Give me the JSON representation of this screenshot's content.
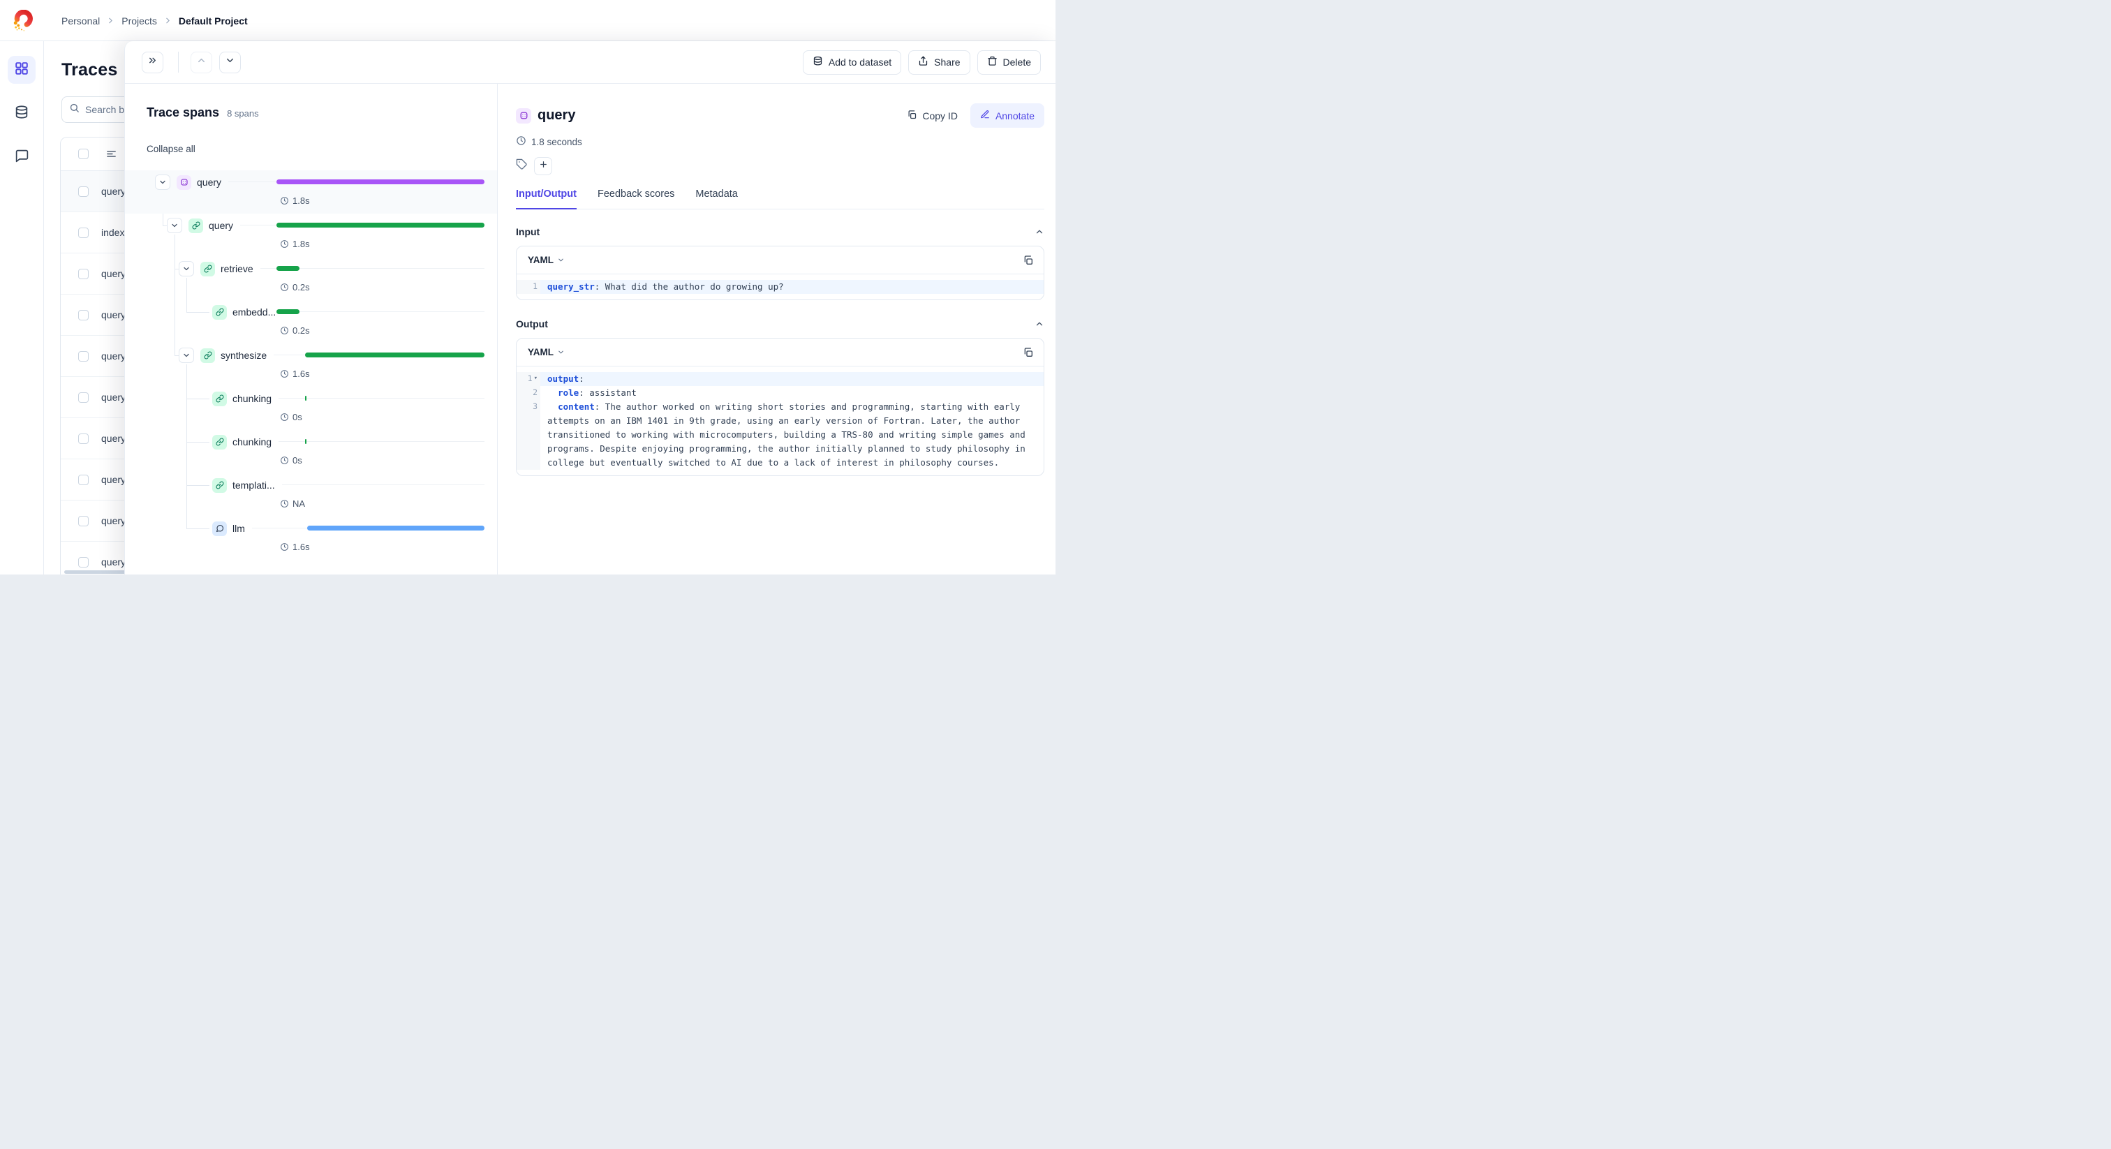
{
  "breadcrumb": {
    "items": [
      "Personal",
      "Projects",
      "Default Project"
    ]
  },
  "sidebar": {
    "items": [
      {
        "id": "projects",
        "icon": "grid-icon",
        "active": true
      },
      {
        "id": "datasets",
        "icon": "database-icon",
        "active": false
      },
      {
        "id": "feedback",
        "icon": "message-icon",
        "active": false
      }
    ]
  },
  "traces": {
    "title": "Traces",
    "search_placeholder": "Search b",
    "rows": [
      {
        "name": "query",
        "selected": true
      },
      {
        "name": "index",
        "selected": false
      },
      {
        "name": "query",
        "selected": false
      },
      {
        "name": "query",
        "selected": false
      },
      {
        "name": "query",
        "selected": false
      },
      {
        "name": "query",
        "selected": false
      },
      {
        "name": "query",
        "selected": false
      },
      {
        "name": "query",
        "selected": false
      },
      {
        "name": "query",
        "selected": false
      },
      {
        "name": "query",
        "selected": false
      }
    ]
  },
  "toolbar": {
    "buttons": [
      {
        "label": "Add to dataset",
        "icon": "database-icon"
      },
      {
        "label": "Share",
        "icon": "share-icon"
      },
      {
        "label": "Delete",
        "icon": "trash-icon"
      }
    ]
  },
  "spans_panel": {
    "title": "Trace spans",
    "count": "8 spans",
    "collapse_all": "Collapse all",
    "rows": [
      {
        "name": "query",
        "icon": "trace",
        "duration": "1.8s",
        "level": 0,
        "chevron": true,
        "selected": true,
        "bar": [
          0,
          1
        ],
        "color": "#a855f7"
      },
      {
        "name": "query",
        "icon": "link",
        "duration": "1.8s",
        "level": 1,
        "chevron": true,
        "selected": false,
        "bar": [
          0,
          1
        ],
        "color": "#16a34a"
      },
      {
        "name": "retrieve",
        "icon": "link",
        "duration": "0.2s",
        "level": 2,
        "chevron": true,
        "selected": false,
        "bar": [
          0,
          0.111
        ],
        "color": "#16a34a"
      },
      {
        "name": "embedd...",
        "icon": "link",
        "duration": "0.2s",
        "level": 3,
        "chevron": false,
        "selected": false,
        "bar": [
          0,
          0.111
        ],
        "color": "#16a34a"
      },
      {
        "name": "synthesize",
        "icon": "link",
        "duration": "1.6s",
        "level": 2,
        "chevron": true,
        "selected": false,
        "bar": [
          0.138,
          1
        ],
        "color": "#16a34a"
      },
      {
        "name": "chunking",
        "icon": "link",
        "duration": "0s",
        "level": 3,
        "chevron": false,
        "selected": false,
        "bar": [
          0.138,
          0.145
        ],
        "color": "#16a34a"
      },
      {
        "name": "chunking",
        "icon": "link",
        "duration": "0s",
        "level": 3,
        "chevron": false,
        "selected": false,
        "bar": [
          0.138,
          0.145
        ],
        "color": "#16a34a"
      },
      {
        "name": "templati...",
        "icon": "link",
        "duration": "NA",
        "level": 3,
        "chevron": false,
        "selected": false,
        "bar": null,
        "color": "#16a34a"
      },
      {
        "name": "llm",
        "icon": "message",
        "duration": "1.6s",
        "level": 3,
        "chevron": false,
        "selected": false,
        "bar": [
          0.148,
          1
        ],
        "color": "#60a5fa"
      }
    ],
    "icon_styles": {
      "trace": {
        "bg": "#f3e8ff",
        "stroke": "#7e22ce"
      },
      "link": {
        "bg": "#d1fae5",
        "stroke": "#047857"
      },
      "message": {
        "bg": "#dbeafe",
        "stroke": "#334155"
      }
    }
  },
  "details": {
    "title": "query",
    "duration": "1.8 seconds",
    "copy_id_label": "Copy ID",
    "annotate_label": "Annotate",
    "tabs": [
      {
        "label": "Input/Output",
        "active": true
      },
      {
        "label": "Feedback scores",
        "active": false
      },
      {
        "label": "Metadata",
        "active": false
      }
    ],
    "input": {
      "label": "Input",
      "format": "YAML",
      "lines": [
        {
          "num": "1",
          "fold": false,
          "highlight": true,
          "segments": [
            [
              "k",
              "query_str"
            ],
            [
              "p",
              ": What did the author do growing up?"
            ]
          ]
        }
      ]
    },
    "output": {
      "label": "Output",
      "format": "YAML",
      "lines": [
        {
          "num": "1",
          "fold": true,
          "highlight": true,
          "segments": [
            [
              "k",
              "output"
            ],
            [
              "p",
              ":"
            ]
          ]
        },
        {
          "num": "2",
          "fold": false,
          "highlight": false,
          "segments": [
            [
              "p",
              "  "
            ],
            [
              "k",
              "role"
            ],
            [
              "p",
              ": assistant"
            ]
          ]
        },
        {
          "num": "3",
          "fold": false,
          "highlight": false,
          "segments": [
            [
              "p",
              "  "
            ],
            [
              "k",
              "content"
            ],
            [
              "p",
              ": The author worked on writing short stories and programming, starting with early attempts on an IBM 1401 in 9th grade, using an early version of Fortran. Later, the author transitioned to working with microcomputers, building a TRS-80 and writing simple games and programs. Despite enjoying programming, the author initially planned to study philosophy in college but eventually switched to AI due to a lack of interest in philosophy courses."
            ]
          ]
        }
      ]
    }
  },
  "colors": {
    "accent": "#4f46e5",
    "trace_bar": "#a855f7",
    "span_bar": "#16a34a",
    "llm_bar": "#60a5fa"
  }
}
